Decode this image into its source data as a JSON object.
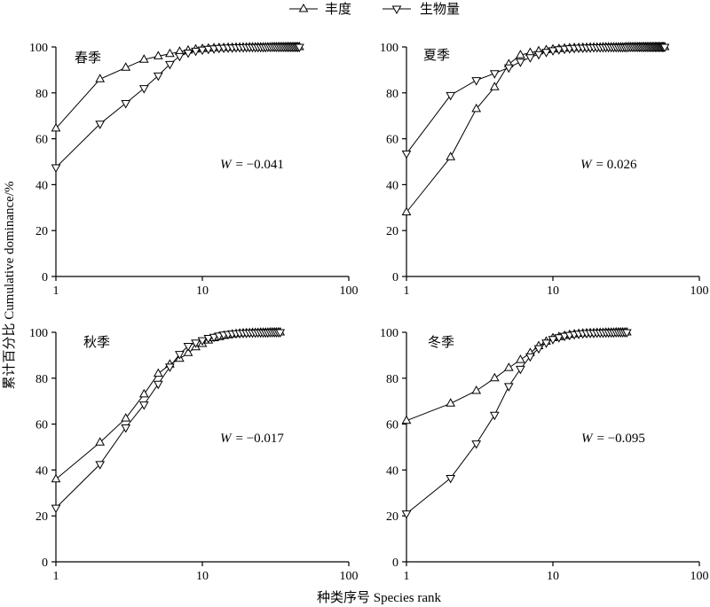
{
  "legend": [
    {
      "label": "丰度",
      "marker": "triangle-up"
    },
    {
      "label": "生物量",
      "marker": "triangle-down"
    }
  ],
  "axes": {
    "ylabel": "累计百分比 Cumulative dominance/%",
    "xlabel": "种类序号 Species rank"
  },
  "colors": {
    "line": "#000000",
    "marker_fill": "#ffffff"
  },
  "chart_data": [
    {
      "type": "line",
      "title": "春季",
      "x_scale": "log",
      "xlim": [
        1,
        100
      ],
      "xticks": [
        "1",
        "10",
        "100"
      ],
      "ylim": [
        0,
        100
      ],
      "yticks": [
        "0",
        "20",
        "40",
        "60",
        "80",
        "100"
      ],
      "grid": false,
      "annotation": {
        "symbol": "W",
        "text": "= −0.041"
      },
      "series": [
        {
          "name": "丰度",
          "marker": "triangle-up",
          "values": [
            64.5,
            86,
            91,
            94.5,
            96,
            97,
            98,
            98.5,
            99,
            99.2,
            99.4,
            99.5,
            99.6,
            99.6,
            99.7,
            99.7,
            99.8,
            99.8,
            99.8,
            99.8,
            99.9,
            99.9,
            99.9,
            99.9,
            99.9,
            99.9,
            99.9,
            99.9,
            99.9,
            100,
            100,
            100,
            100,
            100,
            100,
            100,
            100,
            100,
            100,
            100,
            100,
            100,
            100,
            100,
            100,
            100
          ]
        },
        {
          "name": "生物量",
          "marker": "triangle-down",
          "values": [
            47.5,
            66.5,
            75.5,
            82,
            87.5,
            92.5,
            96,
            97.5,
            98.3,
            98.8,
            99.1,
            99.3,
            99.5,
            99.6,
            99.7,
            99.7,
            99.8,
            99.8,
            99.8,
            99.9,
            99.9,
            99.9,
            99.9,
            99.9,
            99.9,
            99.9,
            99.9,
            100,
            100,
            100,
            100,
            100,
            100,
            100,
            100,
            100,
            100,
            100,
            100,
            100,
            100,
            100,
            100,
            100,
            100,
            100
          ]
        }
      ]
    },
    {
      "type": "line",
      "title": "夏季",
      "x_scale": "log",
      "xlim": [
        1,
        100
      ],
      "xticks": [
        "1",
        "10",
        "100"
      ],
      "ylim": [
        0,
        100
      ],
      "yticks": [
        "0",
        "20",
        "40",
        "60",
        "80",
        "100"
      ],
      "grid": false,
      "annotation": {
        "symbol": "W",
        "text": "= 0.026"
      },
      "series": [
        {
          "name": "丰度",
          "marker": "triangle-up",
          "values": [
            28,
            52,
            73,
            82.5,
            92.5,
            96.5,
            97.5,
            98.2,
            98.7,
            99,
            99.2,
            99.4,
            99.5,
            99.6,
            99.6,
            99.7,
            99.7,
            99.8,
            99.8,
            99.8,
            99.8,
            99.9,
            99.9,
            99.9,
            99.9,
            99.9,
            99.9,
            99.9,
            99.9,
            99.9,
            99.9,
            100,
            100,
            100,
            100,
            100,
            100,
            100,
            100,
            100,
            100,
            100,
            100,
            100,
            100,
            100,
            100,
            100,
            100,
            100,
            100,
            100,
            100,
            100,
            100,
            100,
            100,
            100
          ]
        },
        {
          "name": "生物量",
          "marker": "triangle-down",
          "values": [
            53.5,
            79,
            85.5,
            88.5,
            91,
            93.5,
            95.5,
            96.8,
            97.8,
            98.5,
            98.9,
            99.2,
            99.4,
            99.5,
            99.6,
            99.6,
            99.7,
            99.7,
            99.8,
            99.8,
            99.8,
            99.8,
            99.9,
            99.9,
            99.9,
            99.9,
            99.9,
            99.9,
            99.9,
            99.9,
            99.9,
            99.9,
            100,
            100,
            100,
            100,
            100,
            100,
            100,
            100,
            100,
            100,
            100,
            100,
            100,
            100,
            100,
            100,
            100,
            100,
            100,
            100,
            100,
            100,
            100,
            100,
            100,
            100
          ]
        }
      ]
    },
    {
      "type": "line",
      "title": "秋季",
      "x_scale": "log",
      "xlim": [
        1,
        100
      ],
      "xticks": [
        "1",
        "10",
        "100"
      ],
      "ylim": [
        0,
        100
      ],
      "yticks": [
        "0",
        "20",
        "40",
        "60",
        "80",
        "100"
      ],
      "grid": false,
      "annotation": {
        "symbol": "W",
        "text": "= −0.017"
      },
      "series": [
        {
          "name": "丰度",
          "marker": "triangle-up",
          "values": [
            36,
            52,
            62.5,
            73,
            82,
            86,
            88.5,
            91,
            93.5,
            95,
            96.5,
            97.5,
            98,
            98.5,
            98.8,
            99.1,
            99.3,
            99.5,
            99.6,
            99.7,
            99.7,
            99.8,
            99.8,
            99.8,
            99.9,
            99.9,
            99.9,
            99.9,
            100,
            100,
            100,
            100,
            100,
            100
          ]
        },
        {
          "name": "生物量",
          "marker": "triangle-down",
          "values": [
            23.5,
            42.5,
            58.5,
            68.5,
            77.5,
            85,
            90.5,
            94,
            95.5,
            96.5,
            97.5,
            98,
            98.5,
            98.9,
            99.2,
            99.4,
            99.5,
            99.6,
            99.7,
            99.7,
            99.8,
            99.8,
            99.8,
            99.9,
            99.9,
            99.9,
            99.9,
            99.9,
            100,
            100,
            100,
            100,
            100,
            100
          ]
        }
      ]
    },
    {
      "type": "line",
      "title": "冬季",
      "x_scale": "log",
      "xlim": [
        1,
        100
      ],
      "xticks": [
        "1",
        "10",
        "100"
      ],
      "ylim": [
        0,
        100
      ],
      "yticks": [
        "0",
        "20",
        "40",
        "60",
        "80",
        "100"
      ],
      "grid": false,
      "annotation": {
        "symbol": "W",
        "text": "= −0.095"
      },
      "series": [
        {
          "name": "丰度",
          "marker": "triangle-up",
          "values": [
            61.5,
            69,
            74.5,
            80,
            84.5,
            88,
            91,
            94,
            96,
            97.5,
            98,
            98.5,
            98.9,
            99.2,
            99.4,
            99.5,
            99.6,
            99.7,
            99.7,
            99.8,
            99.8,
            99.8,
            99.9,
            99.9,
            99.9,
            99.9,
            100,
            100,
            100,
            100,
            100,
            100
          ]
        },
        {
          "name": "生物量",
          "marker": "triangle-down",
          "values": [
            21,
            36.5,
            51.5,
            64,
            76.5,
            84,
            89.5,
            93,
            95.5,
            97,
            97.8,
            98.4,
            98.8,
            99.1,
            99.3,
            99.5,
            99.6,
            99.7,
            99.7,
            99.8,
            99.8,
            99.8,
            99.9,
            99.9,
            99.9,
            99.9,
            100,
            100,
            100,
            100,
            100,
            100
          ]
        }
      ]
    }
  ]
}
